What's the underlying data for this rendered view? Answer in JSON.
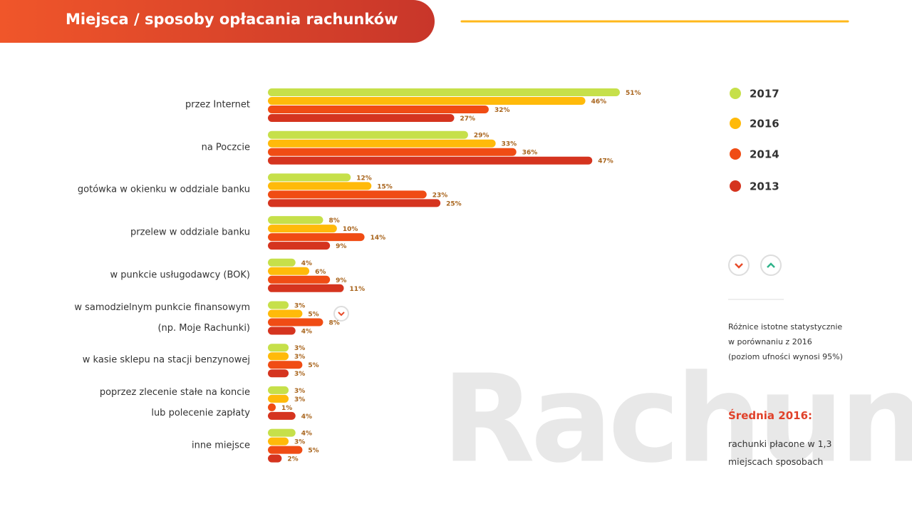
{
  "header": {
    "title": "Miejsca / sposoby opłacania rachunków"
  },
  "chart_data": {
    "type": "hbar",
    "categories": [
      "przez Internet",
      "na Poczcie",
      "gotówka w okienku w oddziale banku",
      "przelew w oddziale banku",
      "w punkcie usługodawcy (BOK)",
      "w samodzielnym punkcie finansowym\n(np. Moje Rachunki)",
      "w kasie sklepu na stacji benzynowej",
      "poprzez zlecenie stałe na koncie\nlub polecenie zapłaty",
      "inne miejsce"
    ],
    "series": [
      {
        "name": "2017",
        "color": "#c6e04a",
        "values": [
          51,
          29,
          12,
          8,
          4,
          3,
          3,
          3,
          4
        ],
        "value_labels": [
          "51%",
          "29%",
          "12%",
          "8%",
          "4%",
          "3%",
          "3%",
          "3%",
          "4%"
        ]
      },
      {
        "name": "2016",
        "color": "#ffba0a",
        "values": [
          46,
          33,
          15,
          10,
          6,
          5,
          3,
          3,
          3
        ],
        "value_labels": [
          "46%",
          "33%",
          "15%",
          "10%",
          "6%",
          "5%",
          "3%",
          "3%",
          "3%"
        ]
      },
      {
        "name": "2014",
        "color": "#f04c14",
        "values": [
          32,
          36,
          23,
          14,
          9,
          8,
          5,
          1,
          5
        ],
        "value_labels": [
          "32%",
          "36%",
          "23%",
          "14%",
          "9%",
          "8%",
          "5%",
          "1%",
          "5%"
        ]
      },
      {
        "name": "2013",
        "color": "#d5341f",
        "values": [
          27,
          47,
          25,
          9,
          11,
          4,
          3,
          4,
          2
        ],
        "value_labels": [
          "27%",
          "47%",
          "25%",
          "9%",
          "11%",
          "4%",
          "3%",
          "4%",
          "2%"
        ]
      }
    ]
  },
  "notes": {
    "significance": "Różnice istotne statystycznie\nw porównaniu z 2016\n(poziom ufności wynosi 95%)",
    "average_title": "Średnia 2016:",
    "average_text": "rachunki płacone w 1,3\nmiejscach sposobach",
    "watermark": "Rachunki"
  }
}
